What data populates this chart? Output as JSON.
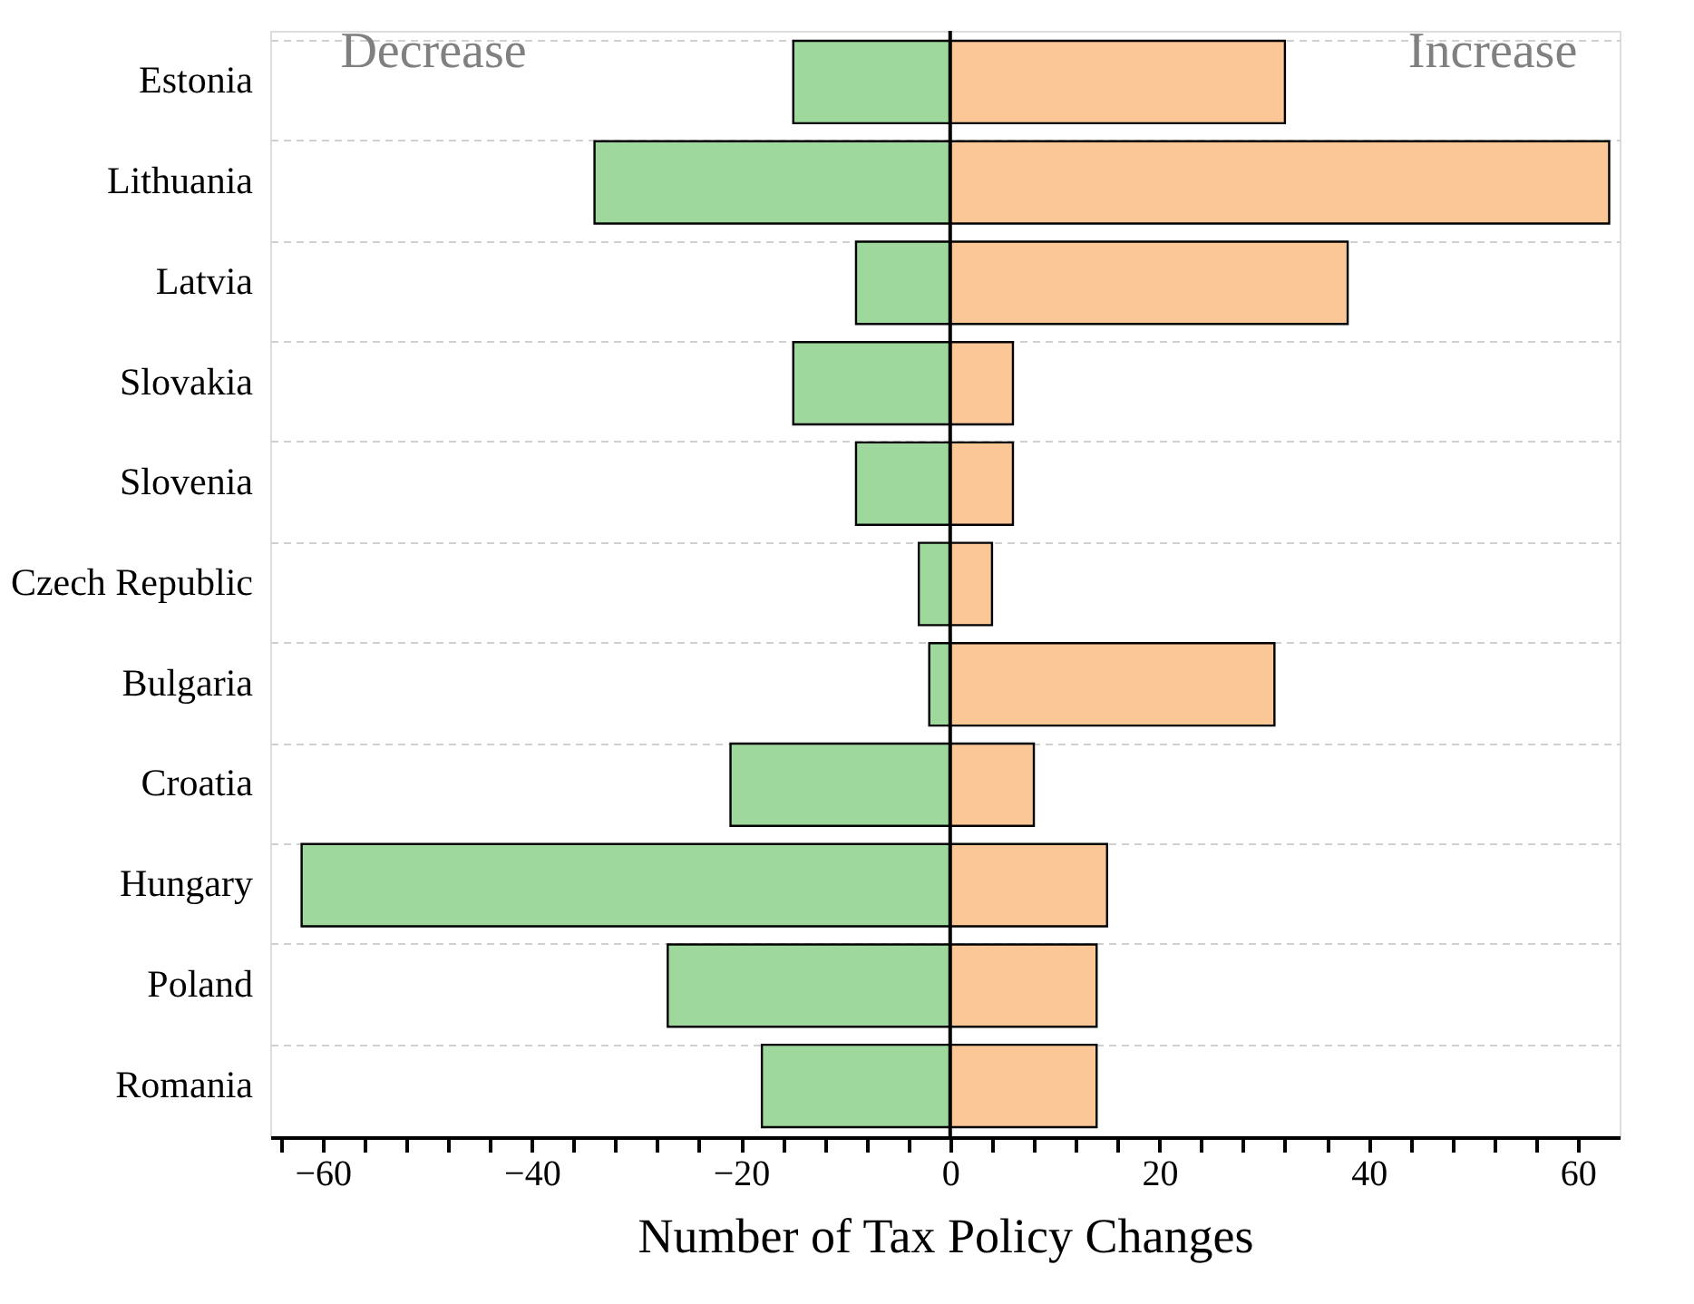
{
  "chart_data": {
    "type": "bar",
    "orientation": "horizontal",
    "stacked": true,
    "categories": [
      "Estonia",
      "Lithuania",
      "Latvia",
      "Slovakia",
      "Slovenia",
      "Czech Republic",
      "Bulgaria",
      "Croatia",
      "Hungary",
      "Poland",
      "Romania"
    ],
    "series": [
      {
        "color": "#9fd89d",
        "values": [
          -15,
          -34,
          -9,
          -15,
          -9,
          -3,
          -2,
          -21,
          -62,
          -27,
          -18
        ]
      },
      {
        "color": "#fbc796",
        "values": [
          32,
          63,
          38,
          6,
          6,
          4,
          31,
          8,
          15,
          14,
          14
        ]
      }
    ],
    "xlabel": "Number of Tax Policy Changes",
    "xlim": [
      -65,
      64
    ],
    "xticks": [
      {
        "value": -64,
        "label": null
      },
      {
        "value": -60,
        "label": "−60"
      },
      {
        "value": -56,
        "label": null
      },
      {
        "value": -52,
        "label": null
      },
      {
        "value": -48,
        "label": null
      },
      {
        "value": -44,
        "label": null
      },
      {
        "value": -40,
        "label": "−40"
      },
      {
        "value": -36,
        "label": null
      },
      {
        "value": -32,
        "label": null
      },
      {
        "value": -28,
        "label": null
      },
      {
        "value": -24,
        "label": null
      },
      {
        "value": -20,
        "label": "−20"
      },
      {
        "value": -16,
        "label": null
      },
      {
        "value": -12,
        "label": null
      },
      {
        "value": -8,
        "label": null
      },
      {
        "value": -4,
        "label": null
      },
      0,
      {
        "value": 4,
        "label": null
      },
      {
        "value": 8,
        "label": null
      },
      {
        "value": 12,
        "label": null
      },
      {
        "value": 16,
        "label": null
      },
      20,
      {
        "value": 24,
        "label": null
      },
      {
        "value": 28,
        "label": null
      },
      {
        "value": 32,
        "label": null
      },
      {
        "value": 36,
        "label": null
      },
      40,
      {
        "value": 44,
        "label": null
      },
      {
        "value": 48,
        "label": null
      },
      {
        "value": 52,
        "label": null
      },
      {
        "value": 56,
        "label": null
      },
      60
    ],
    "ref_lines": [
      {
        "axis": "x",
        "value": 0,
        "color": "#000000"
      }
    ],
    "annotations": [
      "Decrease",
      "Increase"
    ],
    "grid": "y"
  }
}
